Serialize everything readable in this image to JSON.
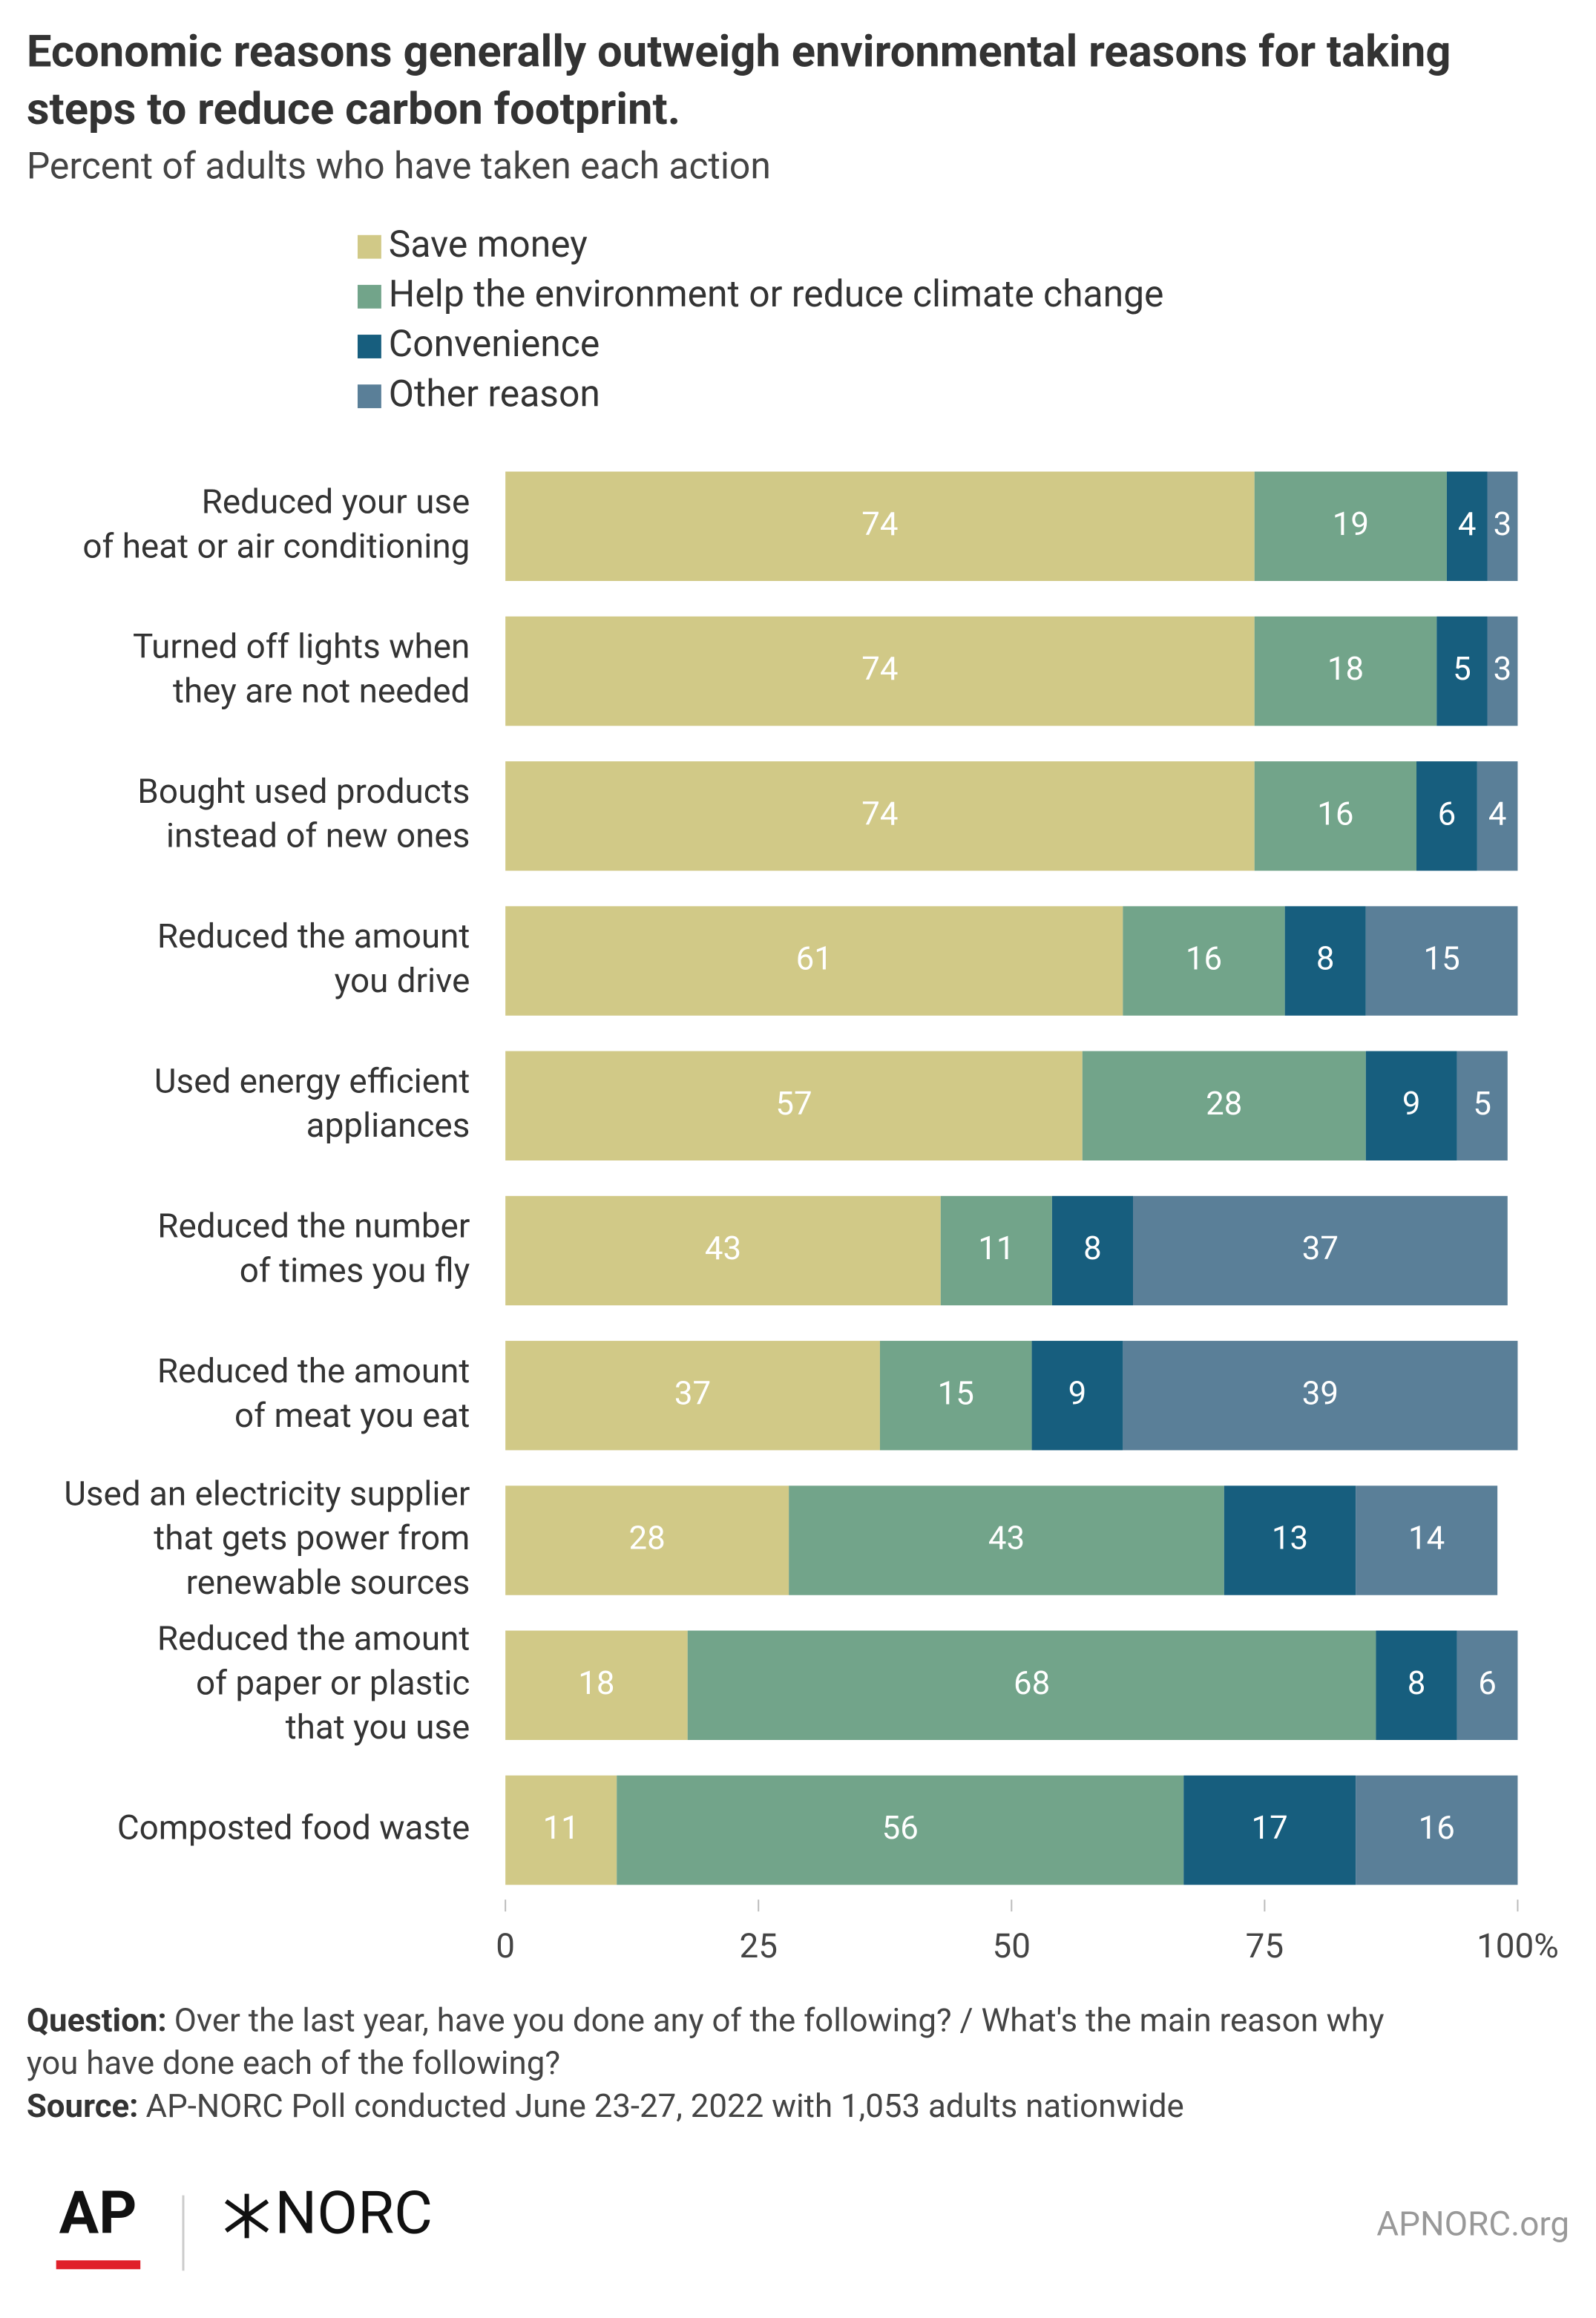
{
  "chart_data": {
    "type": "stacked-bar-horizontal",
    "title": [
      "Economic reasons generally outweigh environmental reasons for taking",
      "steps to reduce carbon footprint."
    ],
    "subtitle": "Percent of adults who have taken each action",
    "categories": [
      [
        "Reduced your use",
        "of heat or air conditioning"
      ],
      [
        "Turned off lights when",
        "they are not needed"
      ],
      [
        "Bought used products",
        "instead of new ones"
      ],
      [
        "Reduced the amount",
        "you drive"
      ],
      [
        "Used energy efficient",
        "appliances"
      ],
      [
        "Reduced the number",
        "of times you fly"
      ],
      [
        "Reduced the amount",
        "of meat you eat"
      ],
      [
        "Used an electricity supplier",
        "that gets power from",
        "renewable sources"
      ],
      [
        "Reduced the amount",
        "of paper or plastic",
        "that you use"
      ],
      [
        "Composted food waste"
      ]
    ],
    "series": [
      {
        "name": "Save money",
        "color": "#d1c987",
        "values": [
          74,
          74,
          74,
          61,
          57,
          43,
          37,
          28,
          18,
          11
        ]
      },
      {
        "name": "Help the environment or reduce climate change",
        "color": "#72a48a",
        "values": [
          19,
          18,
          16,
          16,
          28,
          11,
          15,
          43,
          68,
          56
        ]
      },
      {
        "name": "Convenience",
        "color": "#175e7e",
        "values": [
          4,
          5,
          6,
          8,
          9,
          8,
          9,
          13,
          8,
          17
        ]
      },
      {
        "name": "Other reason",
        "color": "#5a7f98",
        "values": [
          3,
          3,
          4,
          15,
          5,
          37,
          39,
          14,
          6,
          16
        ]
      }
    ],
    "xlim": [
      0,
      100
    ],
    "xticks": [
      0,
      25,
      50,
      75,
      {
        "value": 100,
        "label": "100%"
      }
    ],
    "question_label": "Question:",
    "question": [
      "Over the last year, have you done any of the following? / What's the main reason why",
      "you have done each of the following?"
    ],
    "source_label": "Source:",
    "source": "AP-NORC Poll conducted June 23-27, 2022 with 1,053 adults nationwide",
    "logo_ap": "AP",
    "logo_norc": "NORC",
    "site": "APNORC.org"
  }
}
